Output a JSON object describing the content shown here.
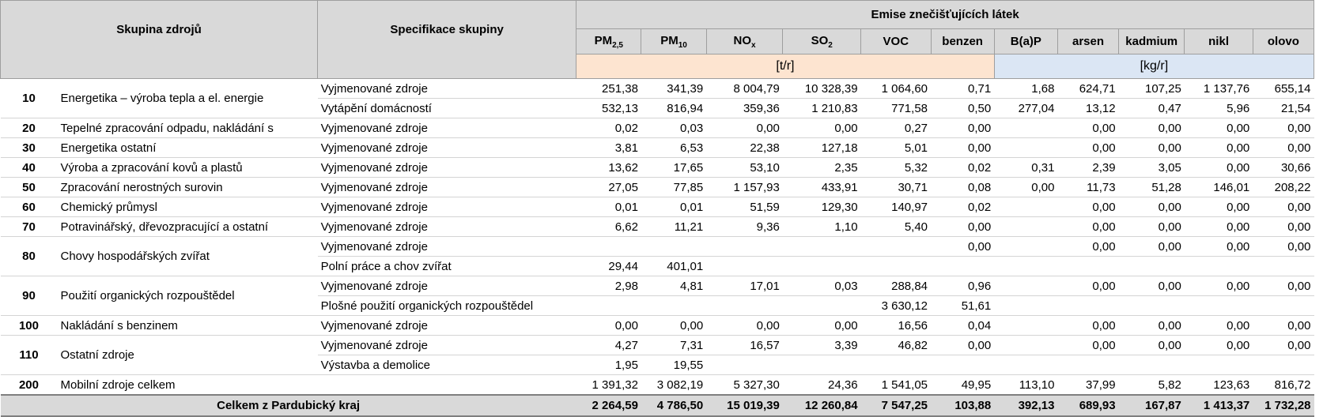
{
  "header": {
    "col_group": "Skupina zdrojů",
    "col_spec": "Specifikace skupiny",
    "emise": "Emise znečišťujících látek",
    "pollutants": [
      {
        "base": "PM",
        "sub": "2,5"
      },
      {
        "base": "PM",
        "sub": "10"
      },
      {
        "base": "NO",
        "sub": "x"
      },
      {
        "base": "SO",
        "sub": "2"
      },
      {
        "base": "VOC",
        "sub": ""
      },
      {
        "base": "benzen",
        "sub": ""
      },
      {
        "base": "B(a)P",
        "sub": ""
      },
      {
        "base": "arsen",
        "sub": ""
      },
      {
        "base": "kadmium",
        "sub": ""
      },
      {
        "base": "nikl",
        "sub": ""
      },
      {
        "base": "olovo",
        "sub": ""
      }
    ],
    "unit_t": "[t/r]",
    "unit_kg": "[kg/r]"
  },
  "rows": [
    {
      "code": "10",
      "name": "Energetika – výroba tepla a el. energie",
      "span": 2,
      "spec": "Vyjmenované zdroje",
      "v": [
        "251,38",
        "341,39",
        "8 004,79",
        "10 328,39",
        "1 064,60",
        "0,71",
        "1,68",
        "624,71",
        "107,25",
        "1 137,76",
        "655,14"
      ]
    },
    {
      "spec": "Vytápění domácností",
      "v": [
        "532,13",
        "816,94",
        "359,36",
        "1 210,83",
        "771,58",
        "0,50",
        "277,04",
        "13,12",
        "0,47",
        "5,96",
        "21,54"
      ]
    },
    {
      "code": "20",
      "name": "Tepelné zpracování odpadu, nakládání s",
      "span": 1,
      "spec": "Vyjmenované zdroje",
      "v": [
        "0,02",
        "0,03",
        "0,00",
        "0,00",
        "0,27",
        "0,00",
        "",
        "0,00",
        "0,00",
        "0,00",
        "0,00"
      ]
    },
    {
      "code": "30",
      "name": "Energetika ostatní",
      "span": 1,
      "spec": "Vyjmenované zdroje",
      "v": [
        "3,81",
        "6,53",
        "22,38",
        "127,18",
        "5,01",
        "0,00",
        "",
        "0,00",
        "0,00",
        "0,00",
        "0,00"
      ]
    },
    {
      "code": "40",
      "name": "Výroba a zpracování kovů a plastů",
      "span": 1,
      "spec": "Vyjmenované zdroje",
      "v": [
        "13,62",
        "17,65",
        "53,10",
        "2,35",
        "5,32",
        "0,02",
        "0,31",
        "2,39",
        "3,05",
        "0,00",
        "30,66"
      ]
    },
    {
      "code": "50",
      "name": "Zpracování nerostných surovin",
      "span": 1,
      "spec": "Vyjmenované zdroje",
      "v": [
        "27,05",
        "77,85",
        "1 157,93",
        "433,91",
        "30,71",
        "0,08",
        "0,00",
        "11,73",
        "51,28",
        "146,01",
        "208,22"
      ]
    },
    {
      "code": "60",
      "name": "Chemický průmysl",
      "span": 1,
      "spec": "Vyjmenované zdroje",
      "v": [
        "0,01",
        "0,01",
        "51,59",
        "129,30",
        "140,97",
        "0,02",
        "",
        "0,00",
        "0,00",
        "0,00",
        "0,00"
      ]
    },
    {
      "code": "70",
      "name": "Potravinářský, dřevozpracující a ostatní",
      "span": 1,
      "spec": "Vyjmenované zdroje",
      "v": [
        "6,62",
        "11,21",
        "9,36",
        "1,10",
        "5,40",
        "0,00",
        "",
        "0,00",
        "0,00",
        "0,00",
        "0,00"
      ]
    },
    {
      "code": "80",
      "name": "Chovy hospodářských zvířat",
      "span": 2,
      "spec": "Vyjmenované zdroje",
      "v": [
        "",
        "",
        "",
        "",
        "",
        "0,00",
        "",
        "0,00",
        "0,00",
        "0,00",
        "0,00"
      ]
    },
    {
      "spec": "Polní práce a chov zvířat",
      "v": [
        "29,44",
        "401,01",
        "",
        "",
        "",
        "",
        "",
        "",
        "",
        "",
        ""
      ]
    },
    {
      "code": "90",
      "name": "Použití organických rozpouštědel",
      "span": 2,
      "spec": "Vyjmenované zdroje",
      "v": [
        "2,98",
        "4,81",
        "17,01",
        "0,03",
        "288,84",
        "0,96",
        "",
        "0,00",
        "0,00",
        "0,00",
        "0,00"
      ]
    },
    {
      "spec": "Plošné použití organických rozpouštědel",
      "v": [
        "",
        "",
        "",
        "",
        "3 630,12",
        "51,61",
        "",
        "",
        "",
        "",
        ""
      ]
    },
    {
      "code": "100",
      "name": "Nakládání s benzinem",
      "span": 1,
      "spec": "Vyjmenované zdroje",
      "v": [
        "0,00",
        "0,00",
        "0,00",
        "0,00",
        "16,56",
        "0,04",
        "",
        "0,00",
        "0,00",
        "0,00",
        "0,00"
      ]
    },
    {
      "code": "110",
      "name": "Ostatní zdroje",
      "span": 2,
      "spec": "Vyjmenované zdroje",
      "v": [
        "4,27",
        "7,31",
        "16,57",
        "3,39",
        "46,82",
        "0,00",
        "",
        "0,00",
        "0,00",
        "0,00",
        "0,00"
      ]
    },
    {
      "spec": "Výstavba a demolice",
      "v": [
        "1,95",
        "19,55",
        "",
        "",
        "",
        "",
        "",
        "",
        "",
        "",
        ""
      ]
    },
    {
      "code": "200",
      "name": "Mobilní zdroje celkem",
      "span": 1,
      "spec": "",
      "v": [
        "1 391,32",
        "3 082,19",
        "5 327,30",
        "24,36",
        "1 541,05",
        "49,95",
        "113,10",
        "37,99",
        "5,82",
        "123,63",
        "816,72"
      ]
    }
  ],
  "total": {
    "label": "Celkem z Pardubický kraj",
    "v": [
      "2 264,59",
      "4 786,50",
      "15 019,39",
      "12 260,84",
      "7 547,25",
      "103,88",
      "392,13",
      "689,93",
      "167,87",
      "1 413,37",
      "1 732,28"
    ]
  }
}
